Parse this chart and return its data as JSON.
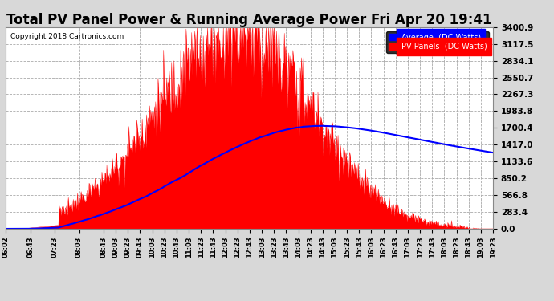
{
  "title": "Total PV Panel Power & Running Average Power Fri Apr 20 19:41",
  "copyright": "Copyright 2018 Cartronics.com",
  "legend_avg": "Average  (DC Watts)",
  "legend_pv": "PV Panels  (DC Watts)",
  "ymax": 3400.9,
  "yticks": [
    0.0,
    283.4,
    566.8,
    850.2,
    1133.6,
    1417.0,
    1700.4,
    1983.8,
    2267.3,
    2550.7,
    2834.1,
    3117.5,
    3400.9
  ],
  "bg_color": "#d8d8d8",
  "plot_bg": "#ffffff",
  "grid_color": "#aaaaaa",
  "pv_color": "#ff0000",
  "avg_color": "#0000ff",
  "title_fontsize": 12,
  "xtick_labels": [
    "06:02",
    "06:43",
    "07:23",
    "08:03",
    "08:43",
    "09:03",
    "09:23",
    "09:43",
    "10:03",
    "10:23",
    "10:43",
    "11:03",
    "11:23",
    "11:43",
    "12:03",
    "12:23",
    "12:43",
    "13:03",
    "13:23",
    "13:43",
    "14:03",
    "14:23",
    "14:43",
    "15:03",
    "15:23",
    "15:43",
    "16:03",
    "16:23",
    "16:43",
    "17:03",
    "17:23",
    "17:43",
    "18:03",
    "18:23",
    "18:43",
    "19:03",
    "19:23"
  ]
}
